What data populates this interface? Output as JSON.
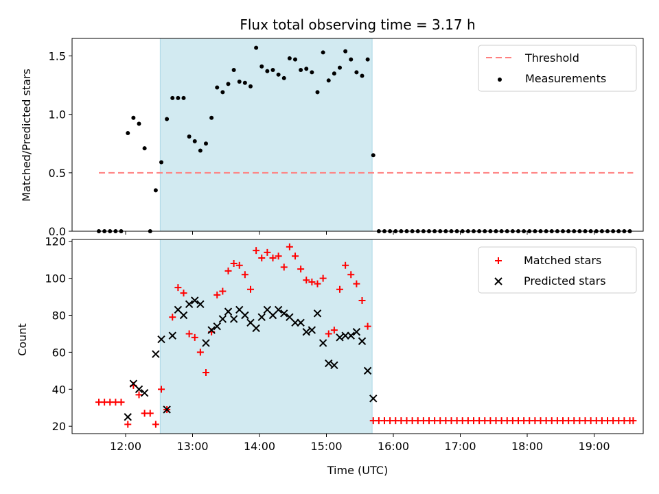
{
  "chart_data": [
    {
      "type": "scatter",
      "title": "Flux total observing time = 3.17 h",
      "xlabel": "",
      "ylabel": "Matched/Predicted stars",
      "ylim": [
        0,
        1.65
      ],
      "xlim": [
        "11:12",
        "19:44"
      ],
      "yticks": [
        "0.0",
        "0.5",
        "1.0",
        "1.5"
      ],
      "shaded_interval": [
        "12:31",
        "15:41"
      ],
      "shade_color": "#add8e6",
      "legend_position": "upper right",
      "series": [
        {
          "name": "Threshold",
          "style": "dashed line",
          "color": "#ff7f7f",
          "x": [
            "11:36",
            "19:35"
          ],
          "y": [
            0.5,
            0.5
          ]
        },
        {
          "name": "Measurements",
          "style": "dot",
          "color": "#000000",
          "points": [
            [
              "11:36",
              0.0
            ],
            [
              "11:41",
              0.0
            ],
            [
              "11:46",
              0.0
            ],
            [
              "11:51",
              0.0
            ],
            [
              "11:56",
              0.0
            ],
            [
              "12:02",
              0.84
            ],
            [
              "12:07",
              0.97
            ],
            [
              "12:12",
              0.92
            ],
            [
              "12:17",
              0.71
            ],
            [
              "12:22",
              0.0
            ],
            [
              "12:27",
              0.35
            ],
            [
              "12:32",
              0.59
            ],
            [
              "12:37",
              0.96
            ],
            [
              "12:42",
              1.14
            ],
            [
              "12:47",
              1.14
            ],
            [
              "12:52",
              1.14
            ],
            [
              "12:57",
              0.81
            ],
            [
              "13:02",
              0.77
            ],
            [
              "13:07",
              0.69
            ],
            [
              "13:12",
              0.75
            ],
            [
              "13:17",
              0.97
            ],
            [
              "13:22",
              1.23
            ],
            [
              "13:27",
              1.19
            ],
            [
              "13:32",
              1.26
            ],
            [
              "13:37",
              1.38
            ],
            [
              "13:42",
              1.28
            ],
            [
              "13:47",
              1.27
            ],
            [
              "13:52",
              1.24
            ],
            [
              "13:57",
              1.57
            ],
            [
              "14:02",
              1.41
            ],
            [
              "14:07",
              1.37
            ],
            [
              "14:12",
              1.38
            ],
            [
              "14:17",
              1.34
            ],
            [
              "14:22",
              1.31
            ],
            [
              "14:27",
              1.48
            ],
            [
              "14:32",
              1.47
            ],
            [
              "14:37",
              1.38
            ],
            [
              "14:42",
              1.39
            ],
            [
              "14:47",
              1.36
            ],
            [
              "14:52",
              1.19
            ],
            [
              "14:57",
              1.53
            ],
            [
              "15:02",
              1.29
            ],
            [
              "15:07",
              1.35
            ],
            [
              "15:12",
              1.4
            ],
            [
              "15:17",
              1.54
            ],
            [
              "15:22",
              1.47
            ],
            [
              "15:27",
              1.36
            ],
            [
              "15:32",
              1.33
            ],
            [
              "15:37",
              1.47
            ],
            [
              "15:42",
              0.65
            ],
            [
              "15:47",
              0.0
            ],
            [
              "15:52",
              0.0
            ],
            [
              "15:57",
              0.0
            ],
            [
              "16:02",
              0.0
            ],
            [
              "16:07",
              0.0
            ],
            [
              "16:12",
              0.0
            ],
            [
              "16:17",
              0.0
            ],
            [
              "16:22",
              0.0
            ],
            [
              "16:27",
              0.0
            ],
            [
              "16:32",
              0.0
            ],
            [
              "16:37",
              0.0
            ],
            [
              "16:42",
              0.0
            ],
            [
              "16:47",
              0.0
            ],
            [
              "16:52",
              0.0
            ],
            [
              "16:57",
              0.0
            ],
            [
              "17:02",
              0.0
            ],
            [
              "17:07",
              0.0
            ],
            [
              "17:12",
              0.0
            ],
            [
              "17:17",
              0.0
            ],
            [
              "17:22",
              0.0
            ],
            [
              "17:27",
              0.0
            ],
            [
              "17:32",
              0.0
            ],
            [
              "17:37",
              0.0
            ],
            [
              "17:42",
              0.0
            ],
            [
              "17:47",
              0.0
            ],
            [
              "17:52",
              0.0
            ],
            [
              "17:57",
              0.0
            ],
            [
              "18:02",
              0.0
            ],
            [
              "18:07",
              0.0
            ],
            [
              "18:12",
              0.0
            ],
            [
              "18:17",
              0.0
            ],
            [
              "18:22",
              0.0
            ],
            [
              "18:27",
              0.0
            ],
            [
              "18:32",
              0.0
            ],
            [
              "18:37",
              0.0
            ],
            [
              "18:42",
              0.0
            ],
            [
              "18:47",
              0.0
            ],
            [
              "18:52",
              0.0
            ],
            [
              "18:57",
              0.0
            ],
            [
              "19:02",
              0.0
            ],
            [
              "19:07",
              0.0
            ],
            [
              "19:12",
              0.0
            ],
            [
              "19:17",
              0.0
            ],
            [
              "19:22",
              0.0
            ],
            [
              "19:27",
              0.0
            ],
            [
              "19:32",
              0.0
            ]
          ]
        }
      ]
    },
    {
      "type": "scatter",
      "title": "",
      "xlabel": "Time (UTC)",
      "ylabel": "Count",
      "ylim": [
        16,
        121
      ],
      "xlim": [
        "11:12",
        "19:44"
      ],
      "yticks": [
        "20",
        "40",
        "60",
        "80",
        "100",
        "120"
      ],
      "xticks": [
        "12:00",
        "13:00",
        "14:00",
        "15:00",
        "16:00",
        "17:00",
        "18:00",
        "19:00"
      ],
      "shaded_interval": [
        "12:31",
        "15:41"
      ],
      "shade_color": "#add8e6",
      "legend_position": "upper right",
      "series": [
        {
          "name": "Matched stars",
          "marker": "+",
          "color": "#ff0000",
          "points": [
            [
              "11:36",
              33
            ],
            [
              "11:41",
              33
            ],
            [
              "11:46",
              33
            ],
            [
              "11:51",
              33
            ],
            [
              "11:56",
              33
            ],
            [
              "12:02",
              21
            ],
            [
              "12:07",
              42
            ],
            [
              "12:12",
              37
            ],
            [
              "12:17",
              27
            ],
            [
              "12:22",
              27
            ],
            [
              "12:27",
              21
            ],
            [
              "12:32",
              40
            ],
            [
              "12:37",
              29
            ],
            [
              "12:42",
              79
            ],
            [
              "12:47",
              95
            ],
            [
              "12:52",
              92
            ],
            [
              "12:57",
              70
            ],
            [
              "13:02",
              68
            ],
            [
              "13:07",
              60
            ],
            [
              "13:12",
              49
            ],
            [
              "13:17",
              71
            ],
            [
              "13:22",
              91
            ],
            [
              "13:27",
              93
            ],
            [
              "13:32",
              104
            ],
            [
              "13:37",
              108
            ],
            [
              "13:42",
              107
            ],
            [
              "13:47",
              102
            ],
            [
              "13:52",
              94
            ],
            [
              "13:57",
              115
            ],
            [
              "14:02",
              111
            ],
            [
              "14:07",
              114
            ],
            [
              "14:12",
              111
            ],
            [
              "14:17",
              112
            ],
            [
              "14:22",
              106
            ],
            [
              "14:27",
              117
            ],
            [
              "14:32",
              112
            ],
            [
              "14:37",
              105
            ],
            [
              "14:42",
              99
            ],
            [
              "14:47",
              98
            ],
            [
              "14:52",
              97
            ],
            [
              "14:57",
              100
            ],
            [
              "15:02",
              70
            ],
            [
              "15:07",
              72
            ],
            [
              "15:12",
              94
            ],
            [
              "15:17",
              107
            ],
            [
              "15:22",
              102
            ],
            [
              "15:27",
              97
            ],
            [
              "15:32",
              88
            ],
            [
              "15:37",
              74
            ],
            [
              "15:42",
              23
            ],
            [
              "15:47",
              23
            ],
            [
              "15:52",
              23
            ],
            [
              "15:57",
              23
            ],
            [
              "16:02",
              23
            ],
            [
              "16:07",
              23
            ],
            [
              "16:12",
              23
            ],
            [
              "16:17",
              23
            ],
            [
              "16:22",
              23
            ],
            [
              "16:27",
              23
            ],
            [
              "16:32",
              23
            ],
            [
              "16:37",
              23
            ],
            [
              "16:42",
              23
            ],
            [
              "16:47",
              23
            ],
            [
              "16:52",
              23
            ],
            [
              "16:57",
              23
            ],
            [
              "17:02",
              23
            ],
            [
              "17:07",
              23
            ],
            [
              "17:12",
              23
            ],
            [
              "17:17",
              23
            ],
            [
              "17:22",
              23
            ],
            [
              "17:27",
              23
            ],
            [
              "17:32",
              23
            ],
            [
              "17:37",
              23
            ],
            [
              "17:42",
              23
            ],
            [
              "17:47",
              23
            ],
            [
              "17:52",
              23
            ],
            [
              "17:57",
              23
            ],
            [
              "18:02",
              23
            ],
            [
              "18:07",
              23
            ],
            [
              "18:12",
              23
            ],
            [
              "18:17",
              23
            ],
            [
              "18:22",
              23
            ],
            [
              "18:27",
              23
            ],
            [
              "18:32",
              23
            ],
            [
              "18:37",
              23
            ],
            [
              "18:42",
              23
            ],
            [
              "18:47",
              23
            ],
            [
              "18:52",
              23
            ],
            [
              "18:57",
              23
            ],
            [
              "19:02",
              23
            ],
            [
              "19:07",
              23
            ],
            [
              "19:12",
              23
            ],
            [
              "19:17",
              23
            ],
            [
              "19:22",
              23
            ],
            [
              "19:27",
              23
            ],
            [
              "19:32",
              23
            ],
            [
              "19:35",
              23
            ]
          ]
        },
        {
          "name": "Predicted stars",
          "marker": "x",
          "color": "#000000",
          "points": [
            [
              "12:02",
              25
            ],
            [
              "12:07",
              43
            ],
            [
              "12:12",
              40
            ],
            [
              "12:17",
              38
            ],
            [
              "12:27",
              59
            ],
            [
              "12:32",
              67
            ],
            [
              "12:37",
              29
            ],
            [
              "12:42",
              69
            ],
            [
              "12:47",
              83
            ],
            [
              "12:52",
              80
            ],
            [
              "12:57",
              86
            ],
            [
              "13:02",
              88
            ],
            [
              "13:07",
              86
            ],
            [
              "13:12",
              65
            ],
            [
              "13:17",
              72
            ],
            [
              "13:22",
              74
            ],
            [
              "13:27",
              78
            ],
            [
              "13:32",
              82
            ],
            [
              "13:37",
              78
            ],
            [
              "13:42",
              83
            ],
            [
              "13:47",
              80
            ],
            [
              "13:52",
              76
            ],
            [
              "13:57",
              73
            ],
            [
              "14:02",
              79
            ],
            [
              "14:07",
              83
            ],
            [
              "14:12",
              80
            ],
            [
              "14:17",
              83
            ],
            [
              "14:22",
              81
            ],
            [
              "14:27",
              79
            ],
            [
              "14:32",
              76
            ],
            [
              "14:37",
              76
            ],
            [
              "14:42",
              71
            ],
            [
              "14:47",
              72
            ],
            [
              "14:52",
              81
            ],
            [
              "14:57",
              65
            ],
            [
              "15:02",
              54
            ],
            [
              "15:07",
              53
            ],
            [
              "15:12",
              68
            ],
            [
              "15:17",
              69
            ],
            [
              "15:22",
              69
            ],
            [
              "15:27",
              71
            ],
            [
              "15:32",
              66
            ],
            [
              "15:37",
              50
            ],
            [
              "15:42",
              35
            ]
          ]
        }
      ]
    }
  ]
}
